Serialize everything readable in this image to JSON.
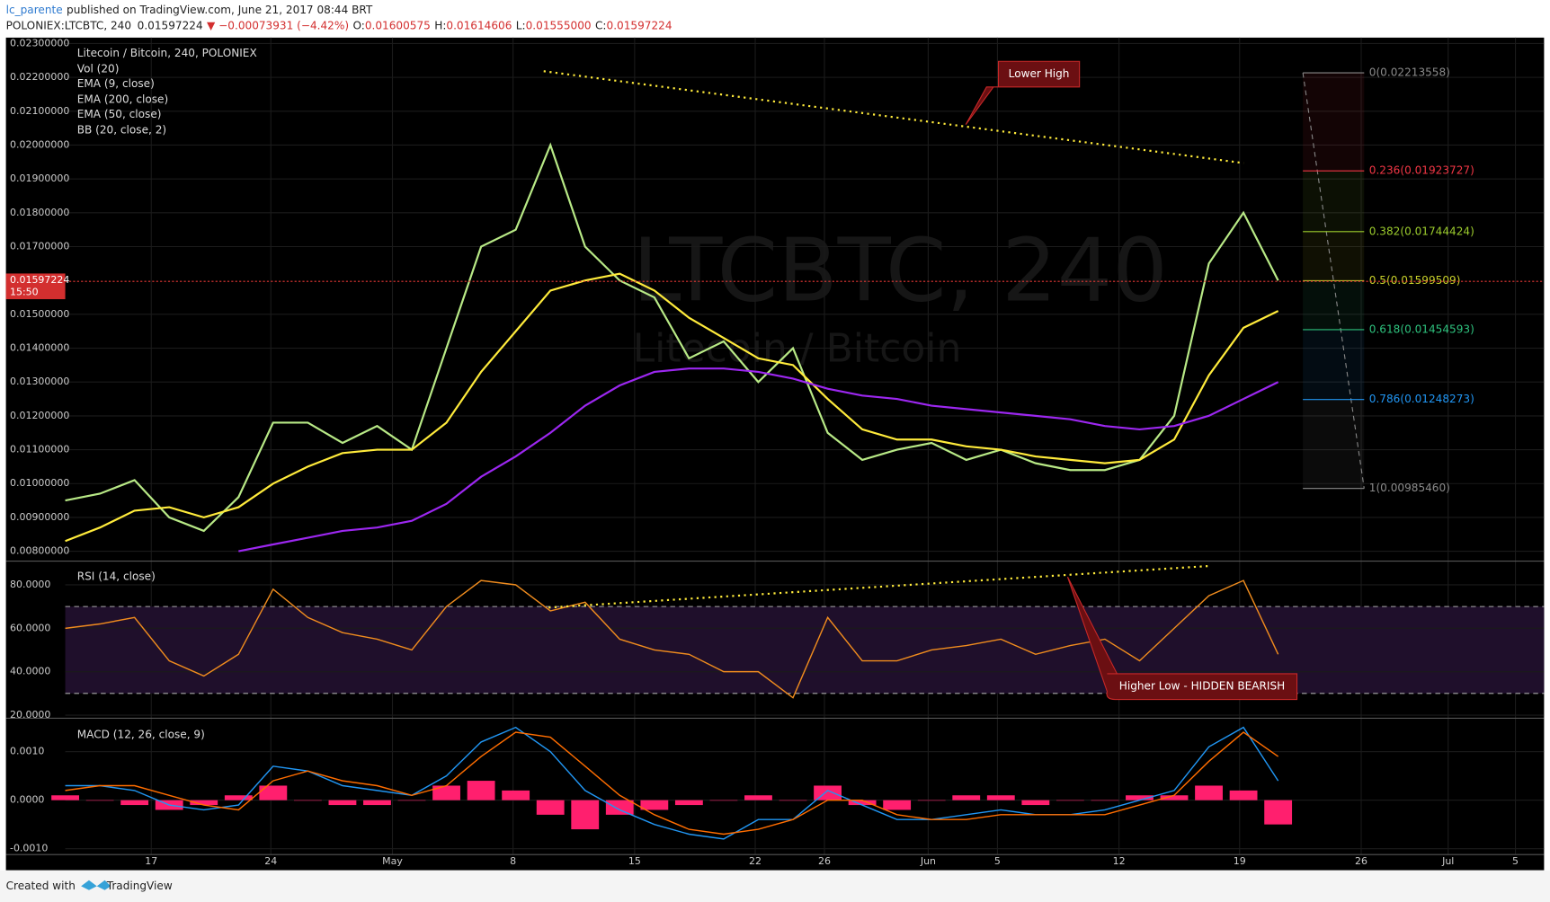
{
  "header": {
    "author": "lc_parente",
    "published": "published on TradingView.com, June 21, 2017 08:44 BRT",
    "symbol": "POLONIEX:LTCBTC, 240",
    "last": "0.01597224",
    "change": "▼ −0.00073931 (−4.42%)",
    "ohlc": [
      {
        "label": "O:",
        "value": "0.01600575"
      },
      {
        "label": "H:",
        "value": "0.01614606"
      },
      {
        "label": "L:",
        "value": "0.01555000"
      },
      {
        "label": "C:",
        "value": "0.01597224"
      }
    ]
  },
  "chart_data": {
    "type": "line",
    "title": "Litecoin / Bitcoin, 240, POLONIEX",
    "watermark": "LTCBTC, 240",
    "watermark_sub": "Litecoin / Bitcoin",
    "indicators": [
      "Vol (20)",
      "EMA (9, close)",
      "BB (20, close, 2)"
    ],
    "x_labels": [
      "17",
      "24",
      "May",
      "8",
      "15",
      "22",
      "26",
      "Jun",
      "5",
      "12",
      "19",
      "26",
      "Jul",
      "5"
    ],
    "series": [
      {
        "color": "#b8e986",
        "values": [
          0.0095,
          0.0097,
          0.0101,
          0.009,
          0.0086,
          0.0096,
          0.0118,
          0.0118,
          0.0112,
          0.0117,
          0.011,
          0.014,
          0.017,
          0.0175,
          0.02,
          0.017,
          0.016,
          0.0155,
          0.0137,
          0.0142,
          0.013,
          0.014,
          0.0115,
          0.0107,
          0.011,
          0.0112,
          0.0107,
          0.011,
          0.0106,
          0.0104,
          0.0104,
          0.0107,
          0.012,
          0.0165,
          0.018,
          0.016
        ]
      },
      {
        "name": "EMA (50, close)",
        "color": "#ffeb3b",
        "values": [
          0.0083,
          0.0087,
          0.0092,
          0.0093,
          0.009,
          0.0093,
          0.01,
          0.0105,
          0.0109,
          0.011,
          0.011,
          0.0118,
          0.0133,
          0.0145,
          0.0157,
          0.016,
          0.0162,
          0.0157,
          0.0149,
          0.0143,
          0.0137,
          0.0135,
          0.0125,
          0.0116,
          0.0113,
          0.0113,
          0.0111,
          0.011,
          0.0108,
          0.0107,
          0.0106,
          0.0107,
          0.0113,
          0.0132,
          0.0146,
          0.0151
        ]
      },
      {
        "name": "EMA (200, close)",
        "color": "#9c27f0",
        "values": [
          null,
          null,
          null,
          null,
          null,
          0.008,
          0.0082,
          0.0084,
          0.0086,
          0.0087,
          0.0089,
          0.0094,
          0.0102,
          0.0108,
          0.0115,
          0.0123,
          0.0129,
          0.0133,
          0.0134,
          0.0134,
          0.0133,
          0.0131,
          0.0128,
          0.0126,
          0.0125,
          0.0123,
          0.0122,
          0.0121,
          0.012,
          0.0119,
          0.0117,
          0.0116,
          0.0117,
          0.012,
          0.0125,
          0.013
        ]
      }
    ],
    "ylim": [
      0.007708,
      0.023175
    ],
    "yticks": [
      {
        "value": 0.023,
        "label": "0.02300000"
      },
      {
        "value": 0.022,
        "label": "0.02200000"
      },
      {
        "value": 0.021,
        "label": "0.02100000"
      },
      {
        "value": 0.02,
        "label": "0.02000000"
      },
      {
        "value": 0.019,
        "label": "0.01900000"
      },
      {
        "value": 0.018,
        "label": "0.01800000"
      },
      {
        "value": 0.017,
        "label": "0.01700000"
      },
      {
        "value": 0.015,
        "label": "0.01500000"
      },
      {
        "value": 0.014,
        "label": "0.01400000"
      },
      {
        "value": 0.013,
        "label": "0.01300000"
      },
      {
        "value": 0.012,
        "label": "0.01200000"
      },
      {
        "value": 0.011,
        "label": "0.01100000"
      },
      {
        "value": 0.01,
        "label": "0.01000000"
      },
      {
        "value": 0.009,
        "label": "0.00900000"
      },
      {
        "value": 0.008,
        "label": "0.00800000"
      }
    ],
    "last_price": {
      "value": 0.01597224,
      "label": "0.01597224"
    },
    "countdown": "15:50",
    "fib": [
      {
        "value": 0.02213558,
        "label": "0(0.02213558)",
        "color": "#8a8a8a"
      },
      {
        "value": 0.01923727,
        "label": "0.236(0.01923727)",
        "color": "#f23645"
      },
      {
        "value": 0.01744424,
        "label": "0.382(0.01744424)",
        "color": "#9ccc2d"
      },
      {
        "value": 0.01599509,
        "label": "0.5(0.01599509)",
        "color": "#c8d02a"
      },
      {
        "value": 0.01454593,
        "label": "0.618(0.01454593)",
        "color": "#2ec27e"
      },
      {
        "value": 0.01248273,
        "label": "0.786(0.01248273)",
        "color": "#2196f3"
      },
      {
        "value": 0.0098546,
        "label": "1(0.00985460)",
        "color": "#8a8a8a"
      }
    ],
    "annotation": "Lower High",
    "rsi": {
      "title": "RSI (14, close)",
      "color": "#f08c1e",
      "ylim": [
        18.6,
        90.9
      ],
      "bands": [
        70,
        30
      ],
      "yticks": [
        {
          "value": 80,
          "label": "80.0000"
        },
        {
          "value": 60,
          "label": "60.0000"
        },
        {
          "value": 40,
          "label": "40.0000"
        },
        {
          "value": 20,
          "label": "20.0000"
        }
      ],
      "values": [
        60,
        62,
        65,
        45,
        38,
        48,
        78,
        65,
        58,
        55,
        50,
        70,
        82,
        80,
        68,
        72,
        55,
        50,
        48,
        40,
        40,
        28,
        65,
        45,
        45,
        50,
        52,
        55,
        48,
        52,
        55,
        45,
        60,
        75,
        82,
        48
      ],
      "annotation": "Higher Low - HIDDEN BEARISH"
    },
    "macd": {
      "title": "MACD (12, 26, close, 9)",
      "ylim": [
        -0.00112,
        0.00169
      ],
      "yticks": [
        {
          "value": 0.001,
          "label": "0.0010"
        },
        {
          "value": 0,
          "label": "0.0000"
        },
        {
          "value": -0.001,
          "label": "-0.0010"
        }
      ],
      "series": [
        {
          "color": "#2196f3",
          "values": [
            0.0003,
            0.0003,
            0.0002,
            -0.0001,
            -0.0002,
            -0.0001,
            0.0007,
            0.0006,
            0.0003,
            0.0002,
            0.0001,
            0.0005,
            0.0012,
            0.0015,
            0.001,
            0.0002,
            -0.0002,
            -0.0005,
            -0.0007,
            -0.0008,
            -0.0004,
            -0.0004,
            0.0002,
            -0.0001,
            -0.0004,
            -0.0004,
            -0.0003,
            -0.0002,
            -0.0003,
            -0.0003,
            -0.0002,
            0.0,
            0.0002,
            0.0011,
            0.0015,
            0.0004
          ]
        },
        {
          "color": "#ff6d00",
          "values": [
            0.0002,
            0.0003,
            0.0003,
            0.0001,
            -0.0001,
            -0.0002,
            0.0004,
            0.0006,
            0.0004,
            0.0003,
            0.0001,
            0.0003,
            0.0009,
            0.0014,
            0.0013,
            0.0007,
            0.0001,
            -0.0003,
            -0.0006,
            -0.0007,
            -0.0006,
            -0.0004,
            0.0,
            0.0,
            -0.0003,
            -0.0004,
            -0.0004,
            -0.0003,
            -0.0003,
            -0.0003,
            -0.0003,
            -0.0001,
            0.0001,
            0.0008,
            0.0014,
            0.0009
          ]
        }
      ],
      "histogram": {
        "color": "#ff1f6e",
        "values": [
          0.0001,
          0,
          -0.0001,
          -0.0002,
          -0.0001,
          0.0001,
          0.0003,
          0,
          -0.0001,
          -0.0001,
          0,
          0.0003,
          0.0004,
          0.0002,
          -0.0003,
          -0.0006,
          -0.0003,
          -0.0002,
          -0.0001,
          0,
          0.0001,
          0,
          0.0003,
          -0.0001,
          -0.0002,
          0,
          0.0001,
          0.0001,
          -0.0001,
          0,
          0,
          0.0001,
          0.0001,
          0.0003,
          0.0002,
          -0.0005
        ]
      }
    }
  },
  "footer": {
    "created": "Created with",
    "brand": "TradingView"
  }
}
